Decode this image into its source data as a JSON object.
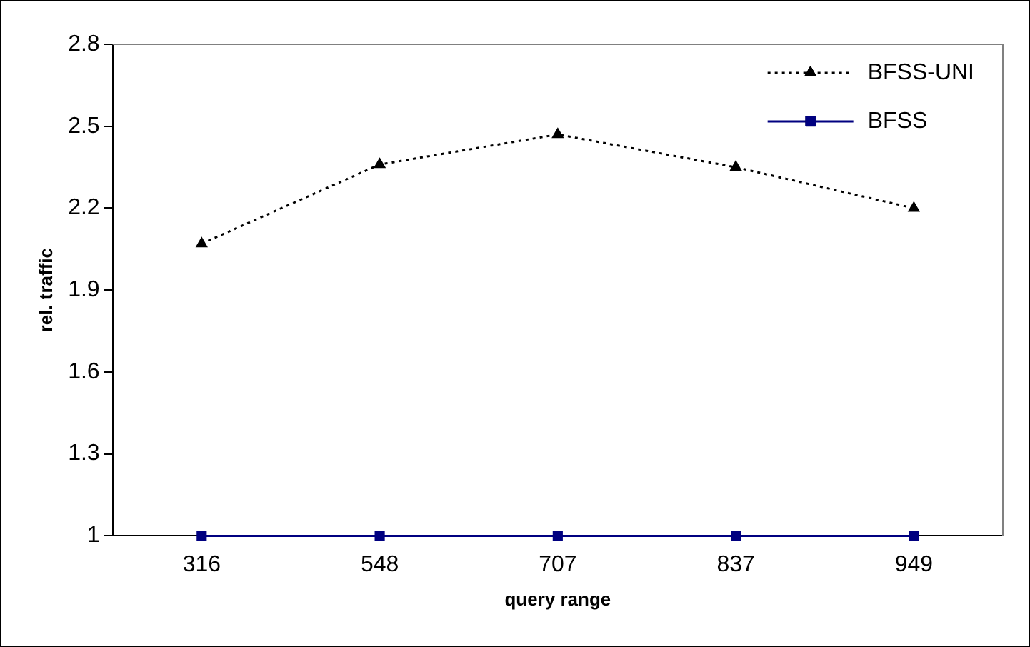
{
  "chart_data": {
    "type": "line",
    "xlabel": "query range",
    "ylabel": "rel. traffic",
    "categories": [
      "316",
      "548",
      "707",
      "837",
      "949"
    ],
    "series": [
      {
        "name": "BFSS-UNI",
        "color": "#000000",
        "values": [
          2.07,
          2.36,
          2.47,
          2.35,
          2.2
        ],
        "marker": "triangle",
        "line_style": "dotted"
      },
      {
        "name": "BFSS",
        "color": "#000080",
        "values": [
          1,
          1,
          1,
          1,
          1
        ],
        "marker": "square",
        "line_style": "solid"
      }
    ],
    "ylim": [
      1,
      2.8
    ],
    "yticks": [
      1,
      1.3,
      1.6,
      1.9,
      2.2,
      2.5,
      2.8
    ],
    "grid": false,
    "legend": "top right"
  }
}
